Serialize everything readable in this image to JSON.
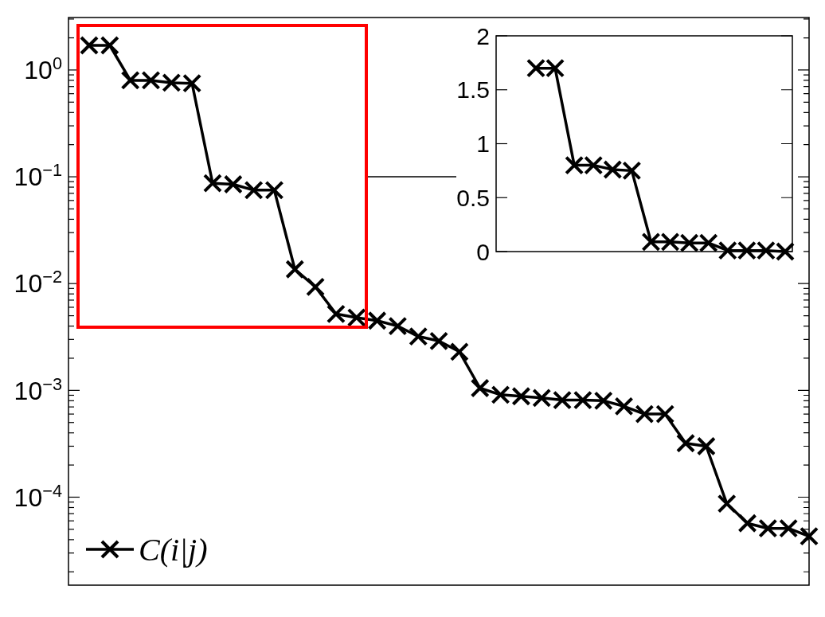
{
  "chart_data": [
    {
      "type": "line",
      "categories": [
        null,
        null,
        null,
        null,
        null,
        null,
        null,
        null,
        null,
        null,
        null,
        null,
        null,
        null,
        null,
        null,
        null,
        null,
        null,
        null,
        null,
        null,
        null,
        null,
        null,
        null,
        null,
        null,
        null,
        null,
        null,
        null,
        null,
        null,
        null,
        null
      ],
      "series": [
        {
          "name": "C(i|j)",
          "color": "#000000",
          "values": [
            1.7,
            1.7,
            0.8,
            0.8,
            0.76,
            0.75,
            0.087,
            0.085,
            0.075,
            0.075,
            0.0136,
            0.0093,
            0.0052,
            0.0048,
            0.0045,
            0.004,
            0.0032,
            0.0029,
            0.0023,
            0.00105,
            0.00091,
            0.00088,
            0.00085,
            0.00081,
            0.00081,
            0.0008,
            0.00071,
            0.0006,
            0.0006,
            0.00032,
            0.0003,
            8.7e-05,
            5.7e-05,
            5.1e-05,
            5.1e-05,
            4.3e-05
          ]
        }
      ],
      "log": true,
      "ylim": [
        1.5e-05,
        3.1
      ],
      "yticks": [
        {
          "value": 2e-05,
          "label": null
        },
        {
          "value": 3e-05,
          "label": null
        },
        {
          "value": 4e-05,
          "label": null
        },
        {
          "value": 5e-05,
          "label": null
        },
        {
          "value": 6e-05,
          "label": null
        },
        {
          "value": 7e-05,
          "label": null
        },
        {
          "value": 8e-05,
          "label": null
        },
        {
          "value": 9e-05,
          "label": null
        },
        {
          "value": 0.0001,
          "label": "10$^{−4}$"
        },
        {
          "value": 0.0002,
          "label": null
        },
        {
          "value": 0.0003,
          "label": null
        },
        {
          "value": 0.0004,
          "label": null
        },
        {
          "value": 0.0005,
          "label": null
        },
        {
          "value": 0.0006,
          "label": null
        },
        {
          "value": 0.0007,
          "label": null
        },
        {
          "value": 0.0008,
          "label": null
        },
        {
          "value": 0.0009,
          "label": null
        },
        {
          "value": 0.001,
          "label": "10$^{−3}$"
        },
        {
          "value": 0.002,
          "label": null
        },
        {
          "value": 0.003,
          "label": null
        },
        {
          "value": 0.004,
          "label": null
        },
        {
          "value": 0.005,
          "label": null
        },
        {
          "value": 0.006,
          "label": null
        },
        {
          "value": 0.007,
          "label": null
        },
        {
          "value": 0.008,
          "label": null
        },
        {
          "value": 0.009,
          "label": null
        },
        {
          "value": 0.01,
          "label": "10$^{−2}$"
        },
        {
          "value": 0.02,
          "label": null
        },
        {
          "value": 0.03,
          "label": null
        },
        {
          "value": 0.04,
          "label": null
        },
        {
          "value": 0.05,
          "label": null
        },
        {
          "value": 0.06,
          "label": null
        },
        {
          "value": 0.07,
          "label": null
        },
        {
          "value": 0.08,
          "label": null
        },
        {
          "value": 0.09,
          "label": null
        },
        {
          "value": 0.1,
          "label": "10$^{−1}$"
        },
        {
          "value": 0.2,
          "label": null
        },
        {
          "value": 0.3,
          "label": null
        },
        {
          "value": 0.4,
          "label": null
        },
        {
          "value": 0.5,
          "label": null
        },
        {
          "value": 0.6,
          "label": null
        },
        {
          "value": 0.7,
          "label": null
        },
        {
          "value": 0.8,
          "label": null
        },
        {
          "value": 0.9,
          "label": null
        },
        {
          "value": 1,
          "label": "10$^{0}$"
        },
        {
          "value": 2,
          "label": null
        },
        {
          "value": 3,
          "label": null
        }
      ],
      "marker": "cross",
      "line_style": "solid",
      "legend": "bottom left",
      "tick_labels": "y"
    },
    {
      "type": "line",
      "categories": [
        null,
        null,
        null,
        null,
        null,
        null,
        null,
        null,
        null,
        null,
        null,
        null,
        null,
        null
      ],
      "series": [
        {
          "color": "#000000",
          "values": [
            1.7,
            1.7,
            0.8,
            0.8,
            0.76,
            0.75,
            0.09,
            0.09,
            0.08,
            0.08,
            0.01,
            0.01,
            0.01,
            0
          ]
        }
      ],
      "ylim": [
        0,
        2
      ],
      "yticks": [
        0,
        0.5,
        1,
        1.5,
        2
      ],
      "marker": "cross",
      "line_style": "solid",
      "tick_labels": "y"
    }
  ]
}
